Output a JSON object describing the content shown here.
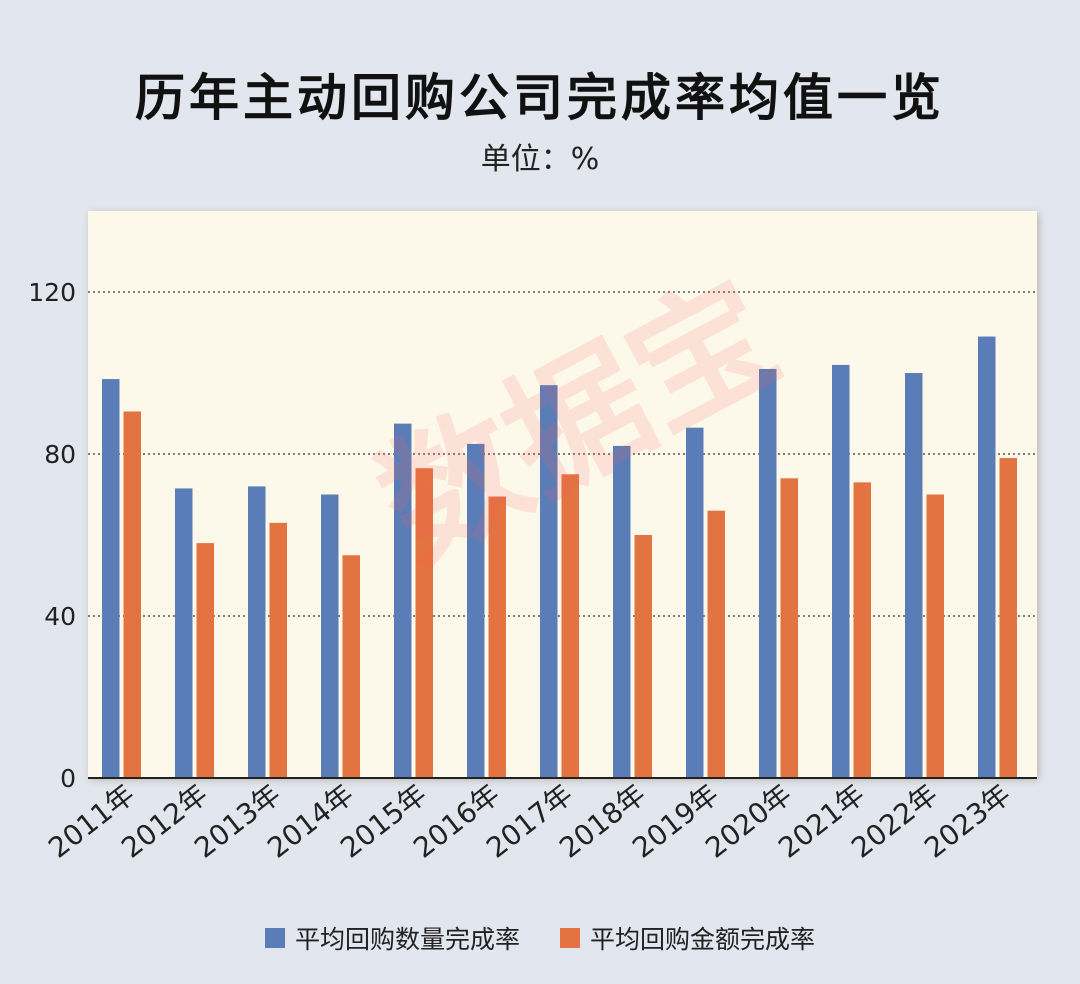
{
  "title": "历年主动回购公司完成率均值一览",
  "subtitle": "单位：%",
  "watermark": "数据宝",
  "colors": {
    "page_bg": "#e2e6ee",
    "plot_bg": "#fcf9ea",
    "series_1": "#5b7db7",
    "series_2": "#e37340",
    "grid": "#555555",
    "axis": "#222222"
  },
  "chart_data": {
    "type": "bar",
    "categories": [
      "2011年",
      "2012年",
      "2013年",
      "2014年",
      "2015年",
      "2016年",
      "2017年",
      "2018年",
      "2019年",
      "2020年",
      "2021年",
      "2022年",
      "2023年"
    ],
    "series": [
      {
        "name": "平均回购数量完成率",
        "values": [
          98.5,
          71.5,
          72,
          70,
          87.5,
          82.5,
          97,
          82,
          86.5,
          101,
          102,
          100,
          109
        ]
      },
      {
        "name": "平均回购金额完成率",
        "values": [
          90.5,
          58,
          63,
          55,
          76.5,
          69.5,
          75,
          60,
          66,
          74,
          73,
          70,
          79
        ]
      }
    ],
    "ylim": [
      0,
      140
    ],
    "yticks": [
      0,
      40,
      80,
      120
    ],
    "grid": true,
    "grid_style": "dotted",
    "legend_position": "bottom"
  }
}
